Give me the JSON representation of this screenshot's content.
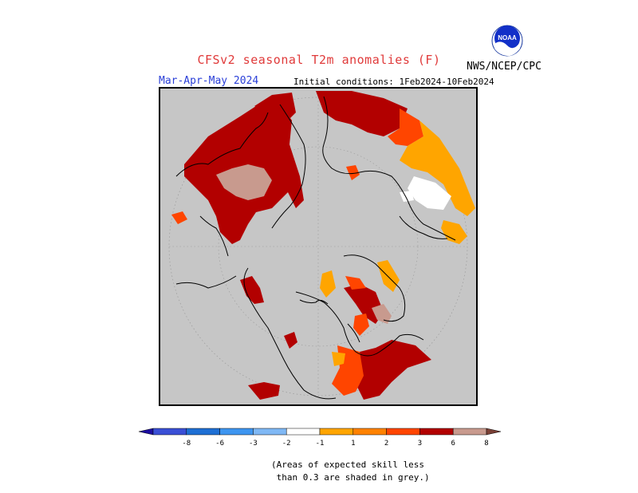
{
  "title": "CFSv2 seasonal T2m anomalies (F)",
  "organization": "NWS/NCEP/CPC",
  "logo_text": "NOAA",
  "period": "Mar-Apr-May 2024",
  "initial_conditions": "Initial conditions: 1Feb2024-10Feb2024",
  "colors": {
    "grey_mask": "#c6c6c6",
    "anom_1_2": "#ffa500",
    "anom_2_3": "#ff4500",
    "anom_3_6": "#b20000",
    "anom_6_8": "#c89a8e",
    "anom_gt8": "#7a4036",
    "title": "#e03a3a",
    "period": "#2a3fd8"
  },
  "legend": {
    "bins": [
      {
        "color": "#1c0ea0"
      },
      {
        "color": "#3a4fd6"
      },
      {
        "color": "#1e6fd4"
      },
      {
        "color": "#3d95f0"
      },
      {
        "color": "#7fb8f5"
      },
      {
        "color": "#ffffff"
      },
      {
        "color": "#ffa500"
      },
      {
        "color": "#ff8200"
      },
      {
        "color": "#ff4500"
      },
      {
        "color": "#b20000"
      },
      {
        "color": "#c89a8e"
      },
      {
        "color": "#7a4036"
      }
    ],
    "ticks": [
      "-8",
      "-6",
      "-3",
      "-2",
      "-1",
      "1",
      "2",
      "3",
      "6",
      "8"
    ]
  },
  "note": "(Areas of expected skill less\n than 0.3 are shaded in grey.)"
}
